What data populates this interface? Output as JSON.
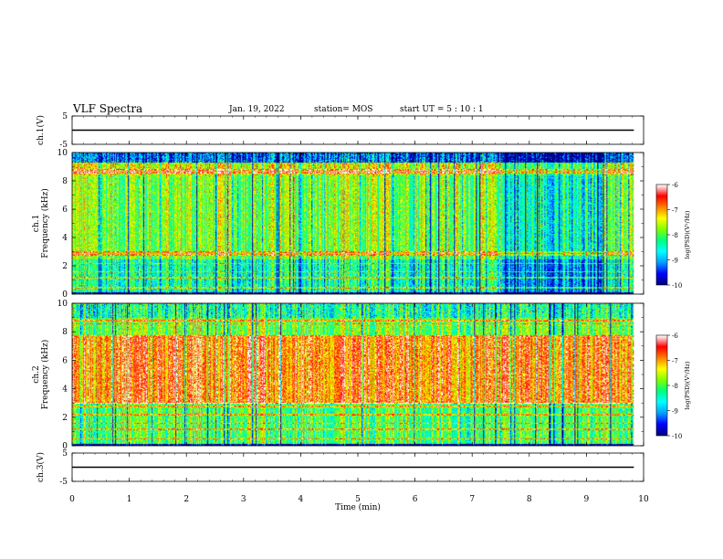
{
  "header": {
    "title": "VLF Spectra",
    "date": "Jan. 19, 2022",
    "station": "station= MOS",
    "start": "start  UT =   5  : 10 : 1"
  },
  "chart_data": [
    {
      "type": "line",
      "panel": "ch1-waveform",
      "ylabel": "ch.1(V)",
      "yticks": [
        "5",
        "-5"
      ],
      "ylim": [
        -5,
        5
      ],
      "xlim": [
        0,
        10
      ],
      "series": [
        {
          "values": [
            0.0,
            0.0
          ]
        }
      ]
    },
    {
      "type": "heatmap",
      "panel": "ch1-spectrogram",
      "ylabel": "ch.1\nFrequency (kHz)",
      "ylabel_lines": [
        "ch.1",
        "Frequency (kHz)"
      ],
      "yticks": [
        "0",
        "2",
        "4",
        "6",
        "8",
        "10"
      ],
      "ylim": [
        0,
        10
      ],
      "xlim": [
        0,
        9.83
      ],
      "colorbar": {
        "label": "log(PSD)(V²/Hz)",
        "ticks": [
          "-6",
          "-7",
          "-8",
          "-9",
          "-10"
        ],
        "range": [
          -10,
          -6
        ]
      }
    },
    {
      "type": "heatmap",
      "panel": "ch2-spectrogram",
      "ylabel": "ch.2\nFrequency (kHz)",
      "ylabel_lines": [
        "ch.2",
        "Frequency (kHz)"
      ],
      "yticks": [
        "0",
        "2",
        "4",
        "6",
        "8",
        "10"
      ],
      "ylim": [
        0,
        10
      ],
      "xlim": [
        0,
        9.83
      ],
      "colorbar": {
        "label": "log(PSD)(V²/Hz)",
        "ticks": [
          "-6",
          "-7",
          "-8",
          "-9",
          "-10"
        ],
        "range": [
          -10,
          -6
        ]
      }
    },
    {
      "type": "line",
      "panel": "ch3-waveform",
      "ylabel": "ch.3(V)",
      "yticks": [
        "5",
        "-5"
      ],
      "ylim": [
        -5,
        5
      ],
      "xlim": [
        0,
        10
      ],
      "series": [
        {
          "values": [
            0.0,
            0.0
          ]
        }
      ]
    }
  ],
  "xaxis": {
    "label": "Time (min)",
    "ticks": [
      "0",
      "1",
      "2",
      "3",
      "4",
      "5",
      "6",
      "7",
      "8",
      "9",
      "10"
    ],
    "range": [
      0,
      10
    ]
  },
  "colors": {
    "colormap": [
      "#000080",
      "#0000ff",
      "#00a0ff",
      "#00ffff",
      "#00ff80",
      "#80ff00",
      "#ffff00",
      "#ff8000",
      "#ff0000",
      "#ffffff"
    ]
  }
}
